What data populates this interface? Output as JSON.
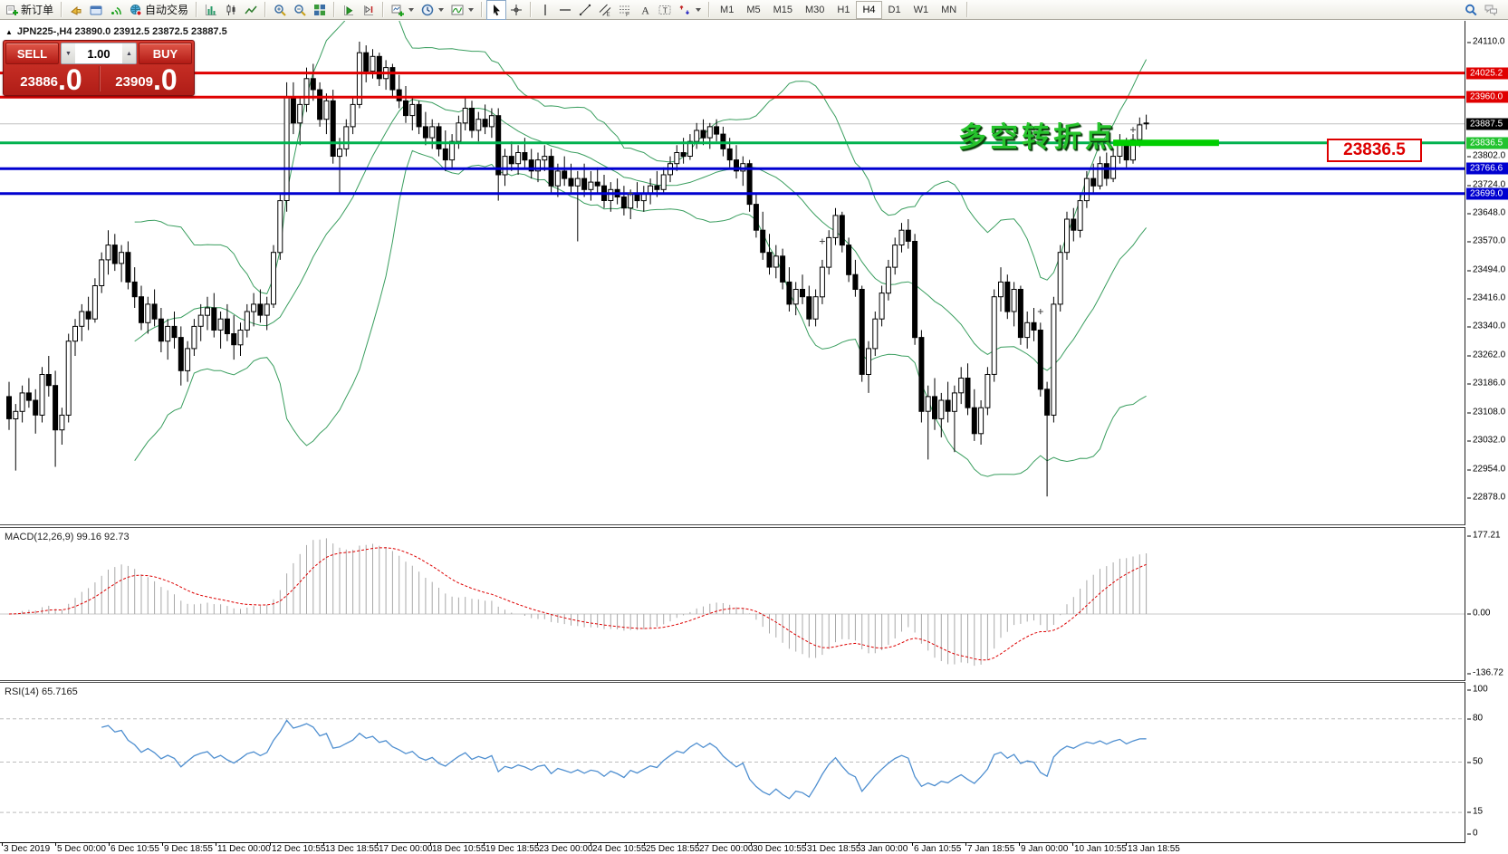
{
  "toolbar": {
    "new_order_label": "新订单",
    "auto_trading_label": "自动交易",
    "groups": [
      [
        {
          "icon": "new-order-icon",
          "label": "新订单"
        }
      ],
      [
        {
          "icon": "alert-icon"
        },
        {
          "icon": "terminal-icon"
        },
        {
          "icon": "signal-icon"
        },
        {
          "icon": "auto-trading-icon",
          "label": "自动交易"
        }
      ],
      [
        {
          "icon": "chart-bars-icon"
        },
        {
          "icon": "chart-candles-icon"
        },
        {
          "icon": "chart-line-icon"
        }
      ],
      [
        {
          "icon": "zoom-in-icon"
        },
        {
          "icon": "zoom-out-icon"
        },
        {
          "icon": "tile-windows-icon"
        }
      ],
      [
        {
          "icon": "auto-scroll-icon"
        },
        {
          "icon": "chart-shift-icon"
        }
      ],
      [
        {
          "icon": "new-chart-icon",
          "dropdown": true
        },
        {
          "icon": "clock-icon",
          "dropdown": true
        },
        {
          "icon": "indicators-icon",
          "dropdown": true
        }
      ],
      [
        {
          "icon": "cursor-icon",
          "active": true
        },
        {
          "icon": "crosshair-icon"
        }
      ],
      [
        {
          "icon": "vline-icon"
        },
        {
          "icon": "hline-icon"
        },
        {
          "icon": "trendline-icon"
        },
        {
          "icon": "channel-icon"
        },
        {
          "icon": "fibonacci-icon"
        },
        {
          "icon": "text-icon"
        },
        {
          "icon": "label-icon"
        },
        {
          "icon": "arrows-icon",
          "dropdown": true
        }
      ]
    ],
    "timeframes": [
      "M1",
      "M5",
      "M15",
      "M30",
      "H1",
      "H4",
      "D1",
      "W1",
      "MN"
    ],
    "active_timeframe": "H4",
    "right_icons": [
      "search-icon",
      "chat-icon"
    ]
  },
  "chart": {
    "title": "JPN225-,H4  23890.0 23912.5 23872.5 23887.5",
    "symbol": "JPN225-",
    "period": "H4"
  },
  "trade_panel": {
    "sell_label": "SELL",
    "buy_label": "BUY",
    "volume": "1.00",
    "sell_price_main": "23886",
    "sell_price_big": ".0",
    "buy_price_main": "23909",
    "buy_price_big": ".0"
  },
  "annotation": {
    "turning_point_text": "多空转折点",
    "price_tag": "23836.5"
  },
  "levels": [
    {
      "label": "24025.2",
      "price": 24025.2,
      "line_color": "#e00000",
      "label_bg": "#e00000",
      "width": 3
    },
    {
      "label": "23960.0",
      "price": 23960.0,
      "line_color": "#e00000",
      "label_bg": "#e00000",
      "width": 3
    },
    {
      "label": "23887.5",
      "price": 23887.5,
      "line_color": "#c0c0c0",
      "label_bg": "#000000",
      "width": 1
    },
    {
      "label": "23836.5",
      "price": 23836.5,
      "line_color": "#00b24e",
      "label_bg": "#22c32f",
      "width": 3
    },
    {
      "label": "23766.6",
      "price": 23766.6,
      "line_color": "#0000d0",
      "label_bg": "#0000d0",
      "width": 3
    },
    {
      "label": "23699.0",
      "price": 23699.0,
      "line_color": "#0000d0",
      "label_bg": "#0000d0",
      "width": 3
    }
  ],
  "price_axis_ticks": [
    "24110.0",
    "23802.0",
    "23724.0",
    "23648.0",
    "23570.0",
    "23494.0",
    "23416.0",
    "23340.0",
    "23262.0",
    "23186.0",
    "23108.0",
    "23032.0",
    "22954.0",
    "22878.0"
  ],
  "chart_data": {
    "type": "candlestick",
    "symbol": "JPN225-",
    "timeframe": "H4",
    "y_range_main": [
      22878,
      24110
    ],
    "x_labels": [
      "3 Dec 2019",
      "5 Dec 00:00",
      "6 Dec 10:55",
      "9 Dec 18:55",
      "11 Dec 00:00",
      "12 Dec 10:55",
      "13 Dec 18:55",
      "17 Dec 00:00",
      "18 Dec 10:55",
      "19 Dec 18:55",
      "23 Dec 00:00",
      "24 Dec 10:55",
      "25 Dec 18:55",
      "27 Dec 00:00",
      "30 Dec 10:55",
      "31 Dec 18:55",
      "3 Jan 00:00",
      "6 Jan 10:55",
      "7 Jan 18:55",
      "9 Jan 00:00",
      "10 Jan 10:55",
      "13 Jan 18:55"
    ],
    "ohlc": [
      [
        23150,
        23190,
        23060,
        23090
      ],
      [
        23090,
        23130,
        22950,
        23110
      ],
      [
        23110,
        23180,
        23080,
        23160
      ],
      [
        23160,
        23200,
        23120,
        23140
      ],
      [
        23140,
        23170,
        23050,
        23100
      ],
      [
        23100,
        23230,
        23080,
        23210
      ],
      [
        23210,
        23260,
        23150,
        23180
      ],
      [
        23180,
        23220,
        22960,
        23060
      ],
      [
        23060,
        23120,
        23020,
        23100
      ],
      [
        23100,
        23320,
        23080,
        23300
      ],
      [
        23300,
        23360,
        23260,
        23340
      ],
      [
        23340,
        23400,
        23300,
        23380
      ],
      [
        23380,
        23420,
        23330,
        23360
      ],
      [
        23360,
        23470,
        23350,
        23450
      ],
      [
        23450,
        23540,
        23430,
        23520
      ],
      [
        23520,
        23600,
        23480,
        23560
      ],
      [
        23560,
        23590,
        23490,
        23510
      ],
      [
        23510,
        23560,
        23460,
        23540
      ],
      [
        23540,
        23570,
        23440,
        23460
      ],
      [
        23460,
        23500,
        23390,
        23420
      ],
      [
        23420,
        23450,
        23330,
        23350
      ],
      [
        23350,
        23420,
        23320,
        23400
      ],
      [
        23400,
        23440,
        23340,
        23360
      ],
      [
        23360,
        23390,
        23270,
        23300
      ],
      [
        23300,
        23360,
        23250,
        23340
      ],
      [
        23340,
        23380,
        23280,
        23310
      ],
      [
        23310,
        23340,
        23180,
        23220
      ],
      [
        23220,
        23300,
        23190,
        23280
      ],
      [
        23280,
        23360,
        23260,
        23340
      ],
      [
        23340,
        23400,
        23300,
        23370
      ],
      [
        23370,
        23420,
        23330,
        23390
      ],
      [
        23390,
        23430,
        23310,
        23330
      ],
      [
        23330,
        23380,
        23280,
        23360
      ],
      [
        23360,
        23400,
        23300,
        23320
      ],
      [
        23320,
        23370,
        23250,
        23290
      ],
      [
        23290,
        23350,
        23260,
        23330
      ],
      [
        23330,
        23400,
        23310,
        23380
      ],
      [
        23380,
        23430,
        23340,
        23400
      ],
      [
        23400,
        23440,
        23350,
        23370
      ],
      [
        23370,
        23420,
        23330,
        23400
      ],
      [
        23400,
        23560,
        23390,
        23540
      ],
      [
        23540,
        23700,
        23520,
        23680
      ],
      [
        23680,
        24000,
        23650,
        23960
      ],
      [
        23960,
        24000,
        23860,
        23890
      ],
      [
        23890,
        23960,
        23830,
        23940
      ],
      [
        23940,
        24040,
        23920,
        24010
      ],
      [
        24010,
        24050,
        23950,
        23980
      ],
      [
        23980,
        24000,
        23880,
        23900
      ],
      [
        23900,
        23970,
        23860,
        23950
      ],
      [
        23950,
        23980,
        23780,
        23800
      ],
      [
        23800,
        23850,
        23700,
        23820
      ],
      [
        23820,
        23900,
        23800,
        23880
      ],
      [
        23880,
        23960,
        23860,
        23940
      ],
      [
        23940,
        24110,
        23930,
        24080
      ],
      [
        24080,
        24100,
        24000,
        24030
      ],
      [
        24030,
        24090,
        24010,
        24070
      ],
      [
        24070,
        24080,
        23990,
        24010
      ],
      [
        24010,
        24060,
        23980,
        24040
      ],
      [
        24040,
        24050,
        23960,
        23980
      ],
      [
        23980,
        24020,
        23930,
        23950
      ],
      [
        23950,
        23990,
        23890,
        23910
      ],
      [
        23910,
        23960,
        23870,
        23940
      ],
      [
        23940,
        23950,
        23860,
        23880
      ],
      [
        23880,
        23920,
        23830,
        23850
      ],
      [
        23850,
        23900,
        23820,
        23880
      ],
      [
        23880,
        23890,
        23800,
        23820
      ],
      [
        23820,
        23870,
        23760,
        23790
      ],
      [
        23790,
        23860,
        23770,
        23840
      ],
      [
        23840,
        23910,
        23820,
        23890
      ],
      [
        23890,
        23960,
        23870,
        23930
      ],
      [
        23930,
        23950,
        23850,
        23870
      ],
      [
        23870,
        23920,
        23840,
        23900
      ],
      [
        23900,
        23940,
        23860,
        23880
      ],
      [
        23880,
        23930,
        23850,
        23910
      ],
      [
        23910,
        23930,
        23680,
        23750
      ],
      [
        23750,
        23820,
        23720,
        23800
      ],
      [
        23800,
        23840,
        23760,
        23780
      ],
      [
        23780,
        23830,
        23750,
        23810
      ],
      [
        23810,
        23850,
        23770,
        23790
      ],
      [
        23790,
        23820,
        23740,
        23760
      ],
      [
        23760,
        23810,
        23730,
        23790
      ],
      [
        23790,
        23830,
        23760,
        23800
      ],
      [
        23800,
        23820,
        23700,
        23720
      ],
      [
        23720,
        23780,
        23690,
        23760
      ],
      [
        23760,
        23800,
        23720,
        23740
      ],
      [
        23740,
        23780,
        23700,
        23720
      ],
      [
        23720,
        23760,
        23570,
        23740
      ],
      [
        23740,
        23780,
        23690,
        23710
      ],
      [
        23710,
        23760,
        23680,
        23730
      ],
      [
        23730,
        23770,
        23700,
        23720
      ],
      [
        23720,
        23750,
        23660,
        23680
      ],
      [
        23680,
        23730,
        23650,
        23710
      ],
      [
        23710,
        23740,
        23670,
        23690
      ],
      [
        23690,
        23720,
        23640,
        23660
      ],
      [
        23660,
        23710,
        23630,
        23700
      ],
      [
        23700,
        23730,
        23660,
        23680
      ],
      [
        23680,
        23720,
        23650,
        23700
      ],
      [
        23700,
        23740,
        23670,
        23720
      ],
      [
        23720,
        23760,
        23690,
        23710
      ],
      [
        23710,
        23770,
        23700,
        23750
      ],
      [
        23750,
        23800,
        23730,
        23780
      ],
      [
        23780,
        23830,
        23760,
        23810
      ],
      [
        23810,
        23850,
        23780,
        23800
      ],
      [
        23800,
        23860,
        23790,
        23840
      ],
      [
        23840,
        23890,
        23820,
        23870
      ],
      [
        23870,
        23900,
        23830,
        23850
      ],
      [
        23850,
        23890,
        23820,
        23880
      ],
      [
        23880,
        23900,
        23840,
        23860
      ],
      [
        23860,
        23880,
        23800,
        23820
      ],
      [
        23820,
        23850,
        23770,
        23790
      ],
      [
        23790,
        23830,
        23740,
        23760
      ],
      [
        23760,
        23800,
        23720,
        23780
      ],
      [
        23780,
        23790,
        23650,
        23670
      ],
      [
        23670,
        23700,
        23580,
        23600
      ],
      [
        23600,
        23650,
        23520,
        23540
      ],
      [
        23540,
        23590,
        23480,
        23500
      ],
      [
        23500,
        23560,
        23470,
        23530
      ],
      [
        23530,
        23550,
        23440,
        23460
      ],
      [
        23460,
        23500,
        23380,
        23400
      ],
      [
        23400,
        23460,
        23370,
        23440
      ],
      [
        23440,
        23480,
        23400,
        23420
      ],
      [
        23420,
        23450,
        23340,
        23360
      ],
      [
        23360,
        23440,
        23340,
        23420
      ],
      [
        23420,
        23520,
        23400,
        23500
      ],
      [
        23500,
        23600,
        23480,
        23580
      ],
      [
        23580,
        23660,
        23560,
        23640
      ],
      [
        23640,
        23650,
        23540,
        23560
      ],
      [
        23560,
        23580,
        23460,
        23480
      ],
      [
        23480,
        23520,
        23420,
        23440
      ],
      [
        23440,
        23450,
        23190,
        23210
      ],
      [
        23210,
        23300,
        23160,
        23280
      ],
      [
        23280,
        23380,
        23260,
        23360
      ],
      [
        23360,
        23450,
        23340,
        23430
      ],
      [
        23430,
        23520,
        23410,
        23500
      ],
      [
        23500,
        23580,
        23480,
        23560
      ],
      [
        23560,
        23620,
        23540,
        23600
      ],
      [
        23600,
        23630,
        23550,
        23570
      ],
      [
        23570,
        23590,
        23290,
        23310
      ],
      [
        23310,
        23330,
        23080,
        23110
      ],
      [
        23110,
        23180,
        22980,
        23150
      ],
      [
        23150,
        23200,
        23060,
        23090
      ],
      [
        23090,
        23160,
        23040,
        23140
      ],
      [
        23140,
        23190,
        23080,
        23110
      ],
      [
        23110,
        23180,
        23000,
        23160
      ],
      [
        23160,
        23230,
        23130,
        23200
      ],
      [
        23200,
        23240,
        23100,
        23120
      ],
      [
        23120,
        23170,
        23030,
        23050
      ],
      [
        23050,
        23140,
        23020,
        23120
      ],
      [
        23120,
        23230,
        23100,
        23210
      ],
      [
        23210,
        23440,
        23190,
        23420
      ],
      [
        23420,
        23500,
        23380,
        23460
      ],
      [
        23460,
        23480,
        23360,
        23380
      ],
      [
        23380,
        23460,
        23340,
        23440
      ],
      [
        23440,
        23450,
        23290,
        23310
      ],
      [
        23310,
        23380,
        23280,
        23350
      ],
      [
        23350,
        23390,
        23300,
        23330
      ],
      [
        23330,
        23350,
        23150,
        23170
      ],
      [
        23170,
        23190,
        22880,
        23100
      ],
      [
        23100,
        23420,
        23080,
        23400
      ],
      [
        23400,
        23560,
        23380,
        23540
      ],
      [
        23540,
        23650,
        23520,
        23630
      ],
      [
        23630,
        23660,
        23570,
        23600
      ],
      [
        23600,
        23700,
        23580,
        23680
      ],
      [
        23680,
        23760,
        23660,
        23740
      ],
      [
        23740,
        23780,
        23700,
        23720
      ],
      [
        23720,
        23800,
        23710,
        23780
      ],
      [
        23780,
        23810,
        23720,
        23740
      ],
      [
        23740,
        23820,
        23730,
        23800
      ],
      [
        23800,
        23860,
        23780,
        23840
      ],
      [
        23840,
        23850,
        23770,
        23790
      ],
      [
        23790,
        23860,
        23780,
        23845
      ],
      [
        23845,
        23905,
        23825,
        23885
      ],
      [
        23890,
        23912.5,
        23872.5,
        23887.5
      ]
    ],
    "markers": [
      {
        "bar": 94,
        "price": 23700
      },
      {
        "bar": 123,
        "price": 23570
      },
      {
        "bar": 156,
        "price": 23380
      },
      {
        "bar": 170,
        "price": 23872
      }
    ],
    "trend_segment": {
      "price": 23836.5,
      "from_bar": 167,
      "to_bar": 183,
      "color": "#00ce00"
    },
    "indicators": {
      "bollinger": {
        "period": 20,
        "deviation": 1.9,
        "color": "#3a9e5f"
      },
      "macd": {
        "label": "MACD(12,26,9) 99.16 92.73",
        "params": [
          12,
          26,
          9
        ],
        "values": [
          99.16,
          92.73
        ],
        "axis": [
          "177.21",
          "0.00",
          "-136.72"
        ],
        "hist_color": "#a8a8a8",
        "signal_color": "#dd0000"
      },
      "rsi": {
        "label": "RSI(14) 65.7165",
        "period": 14,
        "value": 65.7165,
        "axis": [
          "100",
          "80",
          "50",
          "15",
          "0"
        ],
        "levels": [
          80,
          50,
          15
        ],
        "color": "#4f8fd0"
      }
    },
    "colors": {
      "up_candle": "#ffffff",
      "down_candle": "#000000",
      "candle_outline": "#000000",
      "bid_line": "#c0c0c0"
    }
  }
}
